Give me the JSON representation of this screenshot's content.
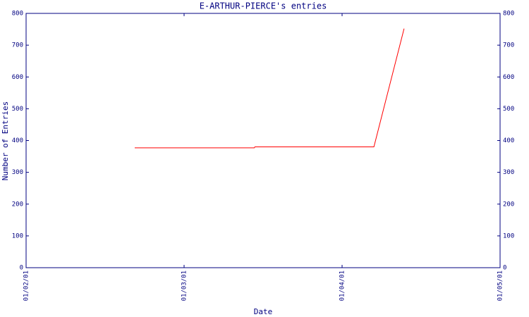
{
  "chart_data": {
    "type": "line",
    "title": "E-ARTHUR-PIERCE's entries",
    "x_label": "Date",
    "y_label": "Number of Entries",
    "x": [
      "2001-01-02T16:30",
      "2001-01-03T10:40",
      "2001-01-03T10:45",
      "2001-01-04T04:50",
      "2001-01-04T09:25"
    ],
    "series": [
      {
        "name": "entries",
        "color": "#ff0000",
        "values": [
          377,
          377,
          380,
          380,
          752
        ]
      }
    ],
    "xlim": [
      "2001-01-02T00:00",
      "2001-01-05T00:00"
    ],
    "xticks": [
      {
        "value": "2001-01-02T00:00",
        "label": "01/02/01"
      },
      {
        "value": "2001-01-03T00:00",
        "label": "01/03/01"
      },
      {
        "value": "2001-01-04T00:00",
        "label": "01/04/01"
      },
      {
        "value": "2001-01-05T00:00",
        "label": "01/05/01"
      }
    ],
    "ylim": [
      0,
      800
    ],
    "yticks": [
      0,
      100,
      200,
      300,
      400,
      500,
      600,
      700,
      800
    ],
    "axis_color": "#000080"
  }
}
